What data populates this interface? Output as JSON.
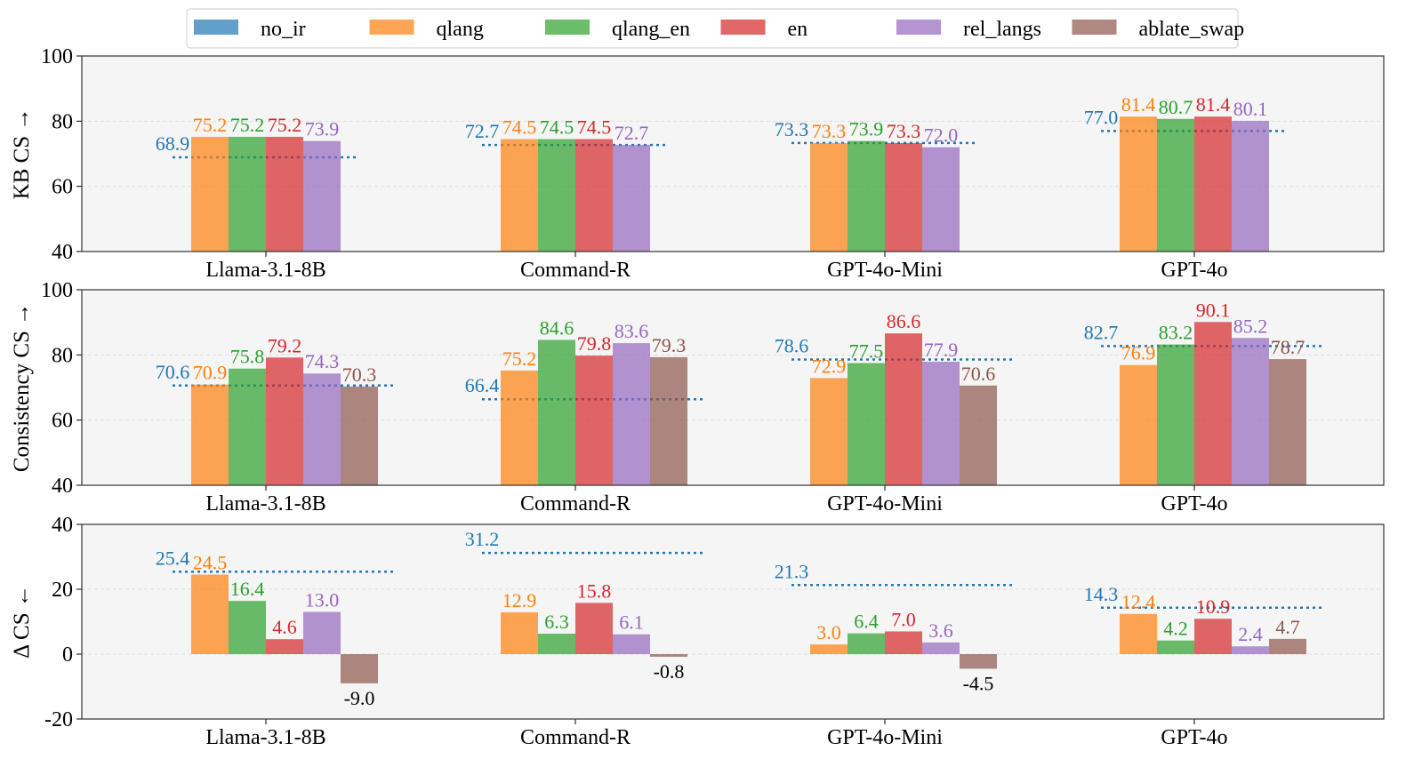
{
  "chart_data": {
    "type": "bar",
    "legend": {
      "placement": "top-center",
      "entries": [
        "no_ir",
        "qlang",
        "qlang_en",
        "en",
        "rel_langs",
        "ablate_swap"
      ]
    },
    "series_colors": {
      "no_ir": "#1f77b4",
      "qlang": "#ff7f0e",
      "qlang_en": "#2ca02c",
      "en": "#d62728",
      "rel_langs": "#9467bd",
      "ablate_swap": "#8c564b"
    },
    "negative_label_color": "#000000",
    "categories": [
      "Llama-3.1-8B",
      "Command-R",
      "GPT-4o-Mini",
      "GPT-4o"
    ],
    "baseline_series": "no_ir",
    "baseline_style": "dotted line",
    "panels": [
      {
        "ylabel": "KB CS →",
        "ylim": [
          40,
          100
        ],
        "yticks": [
          40,
          60,
          80,
          100
        ],
        "grid": true,
        "series": [
          {
            "name": "no_ir",
            "values": [
              68.9,
              72.7,
              73.3,
              77.0
            ]
          },
          {
            "name": "qlang",
            "values": [
              75.2,
              74.5,
              73.3,
              81.4
            ]
          },
          {
            "name": "qlang_en",
            "values": [
              75.2,
              74.5,
              73.9,
              80.7
            ]
          },
          {
            "name": "en",
            "values": [
              75.2,
              74.5,
              73.3,
              81.4
            ]
          },
          {
            "name": "rel_langs",
            "values": [
              73.9,
              72.7,
              72.0,
              80.1
            ]
          }
        ]
      },
      {
        "ylabel": "Consistency CS →",
        "ylim": [
          40,
          100
        ],
        "yticks": [
          40,
          60,
          80,
          100
        ],
        "grid": true,
        "series": [
          {
            "name": "no_ir",
            "values": [
              70.6,
              66.4,
              78.6,
              82.7
            ]
          },
          {
            "name": "qlang",
            "values": [
              70.9,
              75.2,
              72.9,
              76.9
            ]
          },
          {
            "name": "qlang_en",
            "values": [
              75.8,
              84.6,
              77.5,
              83.2
            ]
          },
          {
            "name": "en",
            "values": [
              79.2,
              79.8,
              86.6,
              90.1
            ]
          },
          {
            "name": "rel_langs",
            "values": [
              74.3,
              83.6,
              77.9,
              85.2
            ]
          },
          {
            "name": "ablate_swap",
            "values": [
              70.3,
              79.3,
              70.6,
              78.7
            ]
          }
        ]
      },
      {
        "ylabel": "Δ CS ←",
        "ylim": [
          -20,
          40
        ],
        "yticks": [
          -20,
          0,
          20,
          40
        ],
        "grid": true,
        "series": [
          {
            "name": "no_ir",
            "values": [
              25.4,
              31.2,
              21.3,
              14.3
            ]
          },
          {
            "name": "qlang",
            "values": [
              24.5,
              12.9,
              3.0,
              12.4
            ]
          },
          {
            "name": "qlang_en",
            "values": [
              16.4,
              6.3,
              6.4,
              4.2
            ]
          },
          {
            "name": "en",
            "values": [
              4.6,
              15.8,
              7.0,
              10.9
            ]
          },
          {
            "name": "rel_langs",
            "values": [
              13.0,
              6.1,
              3.6,
              2.4
            ]
          },
          {
            "name": "ablate_swap",
            "values": [
              -9.0,
              -0.8,
              -4.5,
              4.7
            ]
          }
        ]
      }
    ]
  }
}
